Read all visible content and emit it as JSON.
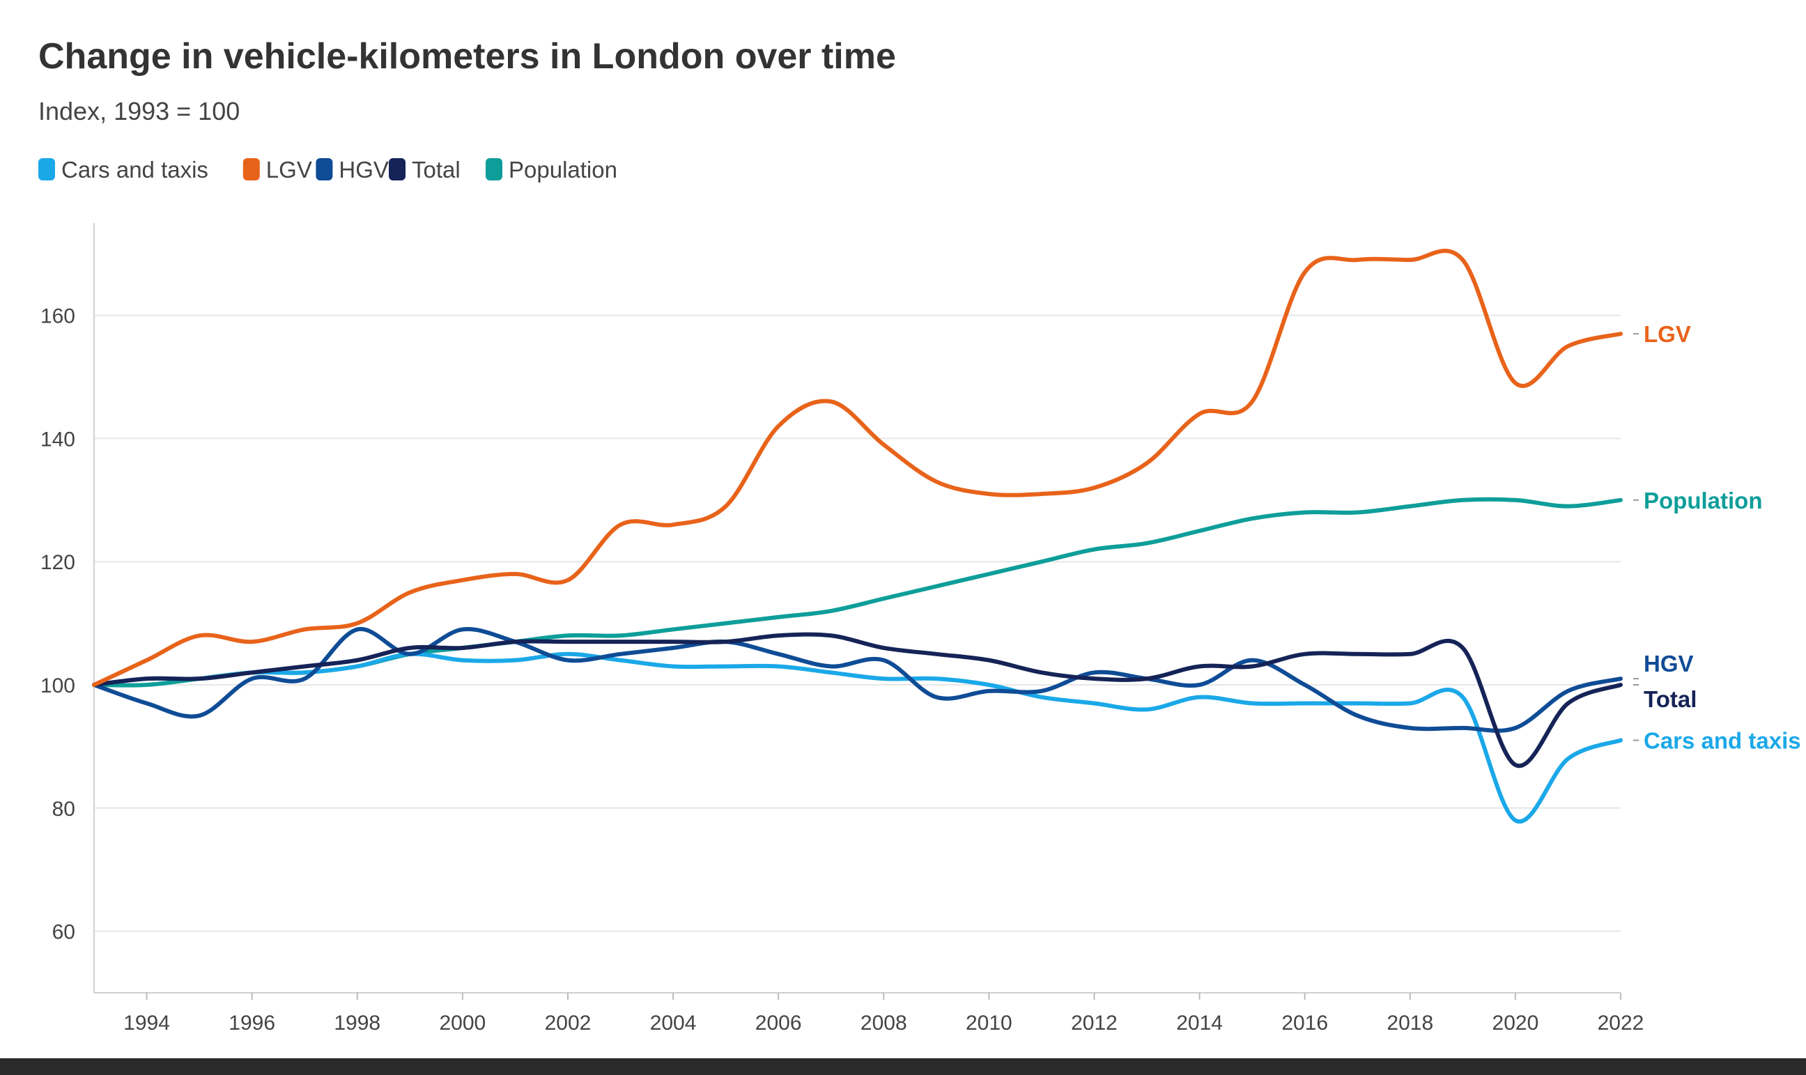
{
  "chart_data": {
    "type": "line",
    "title": "Change in vehicle-kilometers in London over time",
    "subtitle": "Index, 1993 = 100",
    "x": [
      1993,
      1994,
      1995,
      1996,
      1997,
      1998,
      1999,
      2000,
      2001,
      2002,
      2003,
      2004,
      2005,
      2006,
      2007,
      2008,
      2009,
      2010,
      2011,
      2012,
      2013,
      2014,
      2015,
      2016,
      2017,
      2018,
      2019,
      2020,
      2021,
      2022
    ],
    "ylim": [
      50,
      175
    ],
    "xlim": [
      1993,
      2022
    ],
    "yticks": [
      60,
      80,
      100,
      120,
      140,
      160
    ],
    "ytick_labels": [
      "60",
      "80",
      "100",
      "120",
      "140",
      "160"
    ],
    "xticks": [
      1994,
      1996,
      1998,
      2000,
      2002,
      2004,
      2006,
      2008,
      2010,
      2012,
      2014,
      2016,
      2018,
      2020,
      2022
    ],
    "xtick_labels": [
      "1994",
      "1996",
      "1998",
      "2000",
      "2002",
      "2004",
      "2006",
      "2008",
      "2010",
      "2012",
      "2014",
      "2016",
      "2018",
      "2020",
      "2022"
    ],
    "grid": true,
    "legend_position": "top-left",
    "series": [
      {
        "name": "Cars and taxis",
        "color": "#1BA8E8",
        "values": [
          100,
          101,
          101,
          102,
          102,
          103,
          105,
          104,
          104,
          105,
          104,
          103,
          103,
          103,
          102,
          101,
          101,
          100,
          98,
          97,
          96,
          98,
          97,
          97,
          97,
          97,
          98,
          78,
          88,
          91
        ]
      },
      {
        "name": "LGV",
        "color": "#E8631A",
        "values": [
          100,
          104,
          108,
          107,
          109,
          110,
          115,
          117,
          118,
          117,
          126,
          126,
          129,
          142,
          146,
          139,
          133,
          131,
          131,
          132,
          136,
          144,
          146,
          167,
          169,
          169,
          169,
          149,
          155,
          157
        ]
      },
      {
        "name": "HGV",
        "color": "#0F4C96",
        "values": [
          100,
          97,
          95,
          101,
          101,
          109,
          105,
          109,
          107,
          104,
          105,
          106,
          107,
          105,
          103,
          104,
          98,
          99,
          99,
          102,
          101,
          100,
          104,
          100,
          95,
          93,
          93,
          93,
          99,
          101
        ]
      },
      {
        "name": "Total",
        "color": "#152357",
        "values": [
          100,
          101,
          101,
          102,
          103,
          104,
          106,
          106,
          107,
          107,
          107,
          107,
          107,
          108,
          108,
          106,
          105,
          104,
          102,
          101,
          101,
          103,
          103,
          105,
          105,
          105,
          106,
          87,
          97,
          100
        ]
      },
      {
        "name": "Population",
        "color": "#0E9E9A",
        "values": [
          100,
          100,
          101,
          102,
          102,
          103,
          105,
          106,
          107,
          108,
          108,
          109,
          110,
          111,
          112,
          114,
          116,
          118,
          120,
          122,
          123,
          125,
          127,
          128,
          128,
          129,
          130,
          130,
          129,
          130
        ]
      }
    ],
    "end_labels": [
      "LGV",
      "Population",
      "HGV",
      "Total",
      "Cars and taxis"
    ]
  }
}
